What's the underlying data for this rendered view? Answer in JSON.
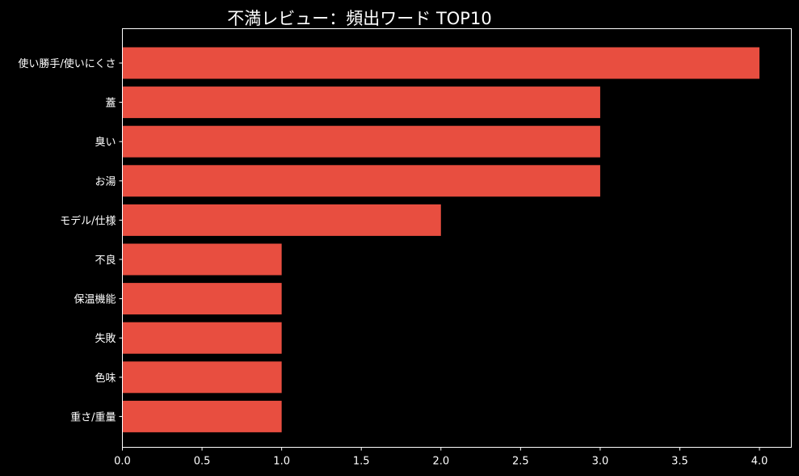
{
  "chart_data": {
    "type": "bar",
    "orientation": "horizontal",
    "title": "不満レビュー：頻出ワード TOP10",
    "xlabel": "",
    "ylabel": "",
    "categories": [
      "使い勝手/使いにくさ",
      "蓋",
      "臭い",
      "お湯",
      "モデル/仕様",
      "不良",
      "保温機能",
      "失敗",
      "色味",
      "重さ/重量"
    ],
    "values": [
      4,
      3,
      3,
      3,
      2,
      1,
      1,
      1,
      1,
      1
    ],
    "xlim": [
      0,
      4.2
    ],
    "xticks": [
      "0.0",
      "0.5",
      "1.0",
      "1.5",
      "2.0",
      "2.5",
      "3.0",
      "3.5",
      "4.0"
    ],
    "grid": false,
    "legend": "none",
    "colors": {
      "background": "#000000",
      "bar": "#e84e40",
      "axis": "#ffffff",
      "text": "#ffffff"
    }
  }
}
